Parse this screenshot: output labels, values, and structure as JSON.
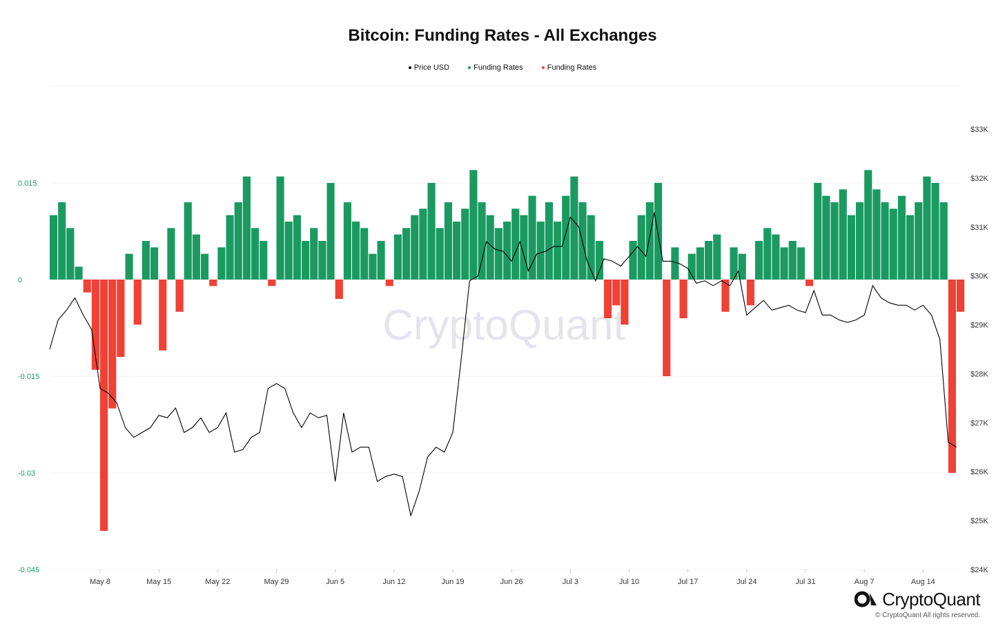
{
  "title": "Bitcoin: Funding Rates - All Exchanges",
  "watermark": "CryptoQuant",
  "logo_text": "CryptoQuant",
  "copyright": "© CryptoQuant All rights reserved.",
  "colors": {
    "price": "#000000",
    "positive": "#1a9a61",
    "negative": "#ef4135",
    "left_axis_text": "#1a9a61",
    "right_axis_text": "#333333",
    "watermark": "#e4e4ec"
  },
  "legend": [
    {
      "label": "Price USD",
      "color": "#000000"
    },
    {
      "label": "Funding Rates",
      "color": "#1a9a61"
    },
    {
      "label": "Funding Rates",
      "color": "#ef4135"
    }
  ],
  "chart_data": {
    "type": "bar+line",
    "x_start": "2023-05-02",
    "x_end": "2023-08-18",
    "x_ticks": [
      "May 8",
      "May 15",
      "May 22",
      "May 29",
      "Jun 5",
      "Jun 12",
      "Jun 19",
      "Jun 26",
      "Jul 3",
      "Jul 10",
      "Jul 17",
      "Jul 24",
      "Jul 31",
      "Aug 7",
      "Aug 14"
    ],
    "left_axis": {
      "ticks": [
        0.015,
        0,
        -0.015,
        -0.03,
        -0.045
      ],
      "tick_labels": [
        "0.015",
        "0",
        "-0.015",
        "-0.03",
        "-0.045"
      ],
      "range": [
        -0.045,
        0.0165
      ]
    },
    "right_axis": {
      "ticks": [
        24000,
        25000,
        26000,
        27000,
        28000,
        29000,
        30000,
        31000,
        32000,
        33000
      ],
      "tick_labels": [
        "$24K",
        "$25K",
        "$26K",
        "$27K",
        "$28K",
        "$29K",
        "$30K",
        "$31K",
        "$32K",
        "$33K"
      ],
      "range": [
        24000,
        33000
      ]
    },
    "price_usd": [
      [
        "2023-05-02",
        28500
      ],
      [
        "2023-05-03",
        29100
      ],
      [
        "2023-05-04",
        29300
      ],
      [
        "2023-05-05",
        29550
      ],
      [
        "2023-05-06",
        29200
      ],
      [
        "2023-05-07",
        28900
      ],
      [
        "2023-05-08",
        27700
      ],
      [
        "2023-05-09",
        27600
      ],
      [
        "2023-05-10",
        27400
      ],
      [
        "2023-05-11",
        26900
      ],
      [
        "2023-05-12",
        26700
      ],
      [
        "2023-05-13",
        26800
      ],
      [
        "2023-05-14",
        26900
      ],
      [
        "2023-05-15",
        27150
      ],
      [
        "2023-05-16",
        27100
      ],
      [
        "2023-05-17",
        27300
      ],
      [
        "2023-05-18",
        26800
      ],
      [
        "2023-05-19",
        26900
      ],
      [
        "2023-05-20",
        27100
      ],
      [
        "2023-05-21",
        26800
      ],
      [
        "2023-05-22",
        26900
      ],
      [
        "2023-05-23",
        27200
      ],
      [
        "2023-05-24",
        26400
      ],
      [
        "2023-05-25",
        26450
      ],
      [
        "2023-05-26",
        26700
      ],
      [
        "2023-05-27",
        26800
      ],
      [
        "2023-05-28",
        27700
      ],
      [
        "2023-05-29",
        27800
      ],
      [
        "2023-05-30",
        27700
      ],
      [
        "2023-05-31",
        27200
      ],
      [
        "2023-06-01",
        26900
      ],
      [
        "2023-06-02",
        27200
      ],
      [
        "2023-06-03",
        27100
      ],
      [
        "2023-06-04",
        27150
      ],
      [
        "2023-06-05",
        25800
      ],
      [
        "2023-06-06",
        27200
      ],
      [
        "2023-06-07",
        26400
      ],
      [
        "2023-06-08",
        26500
      ],
      [
        "2023-06-09",
        26500
      ],
      [
        "2023-06-10",
        25800
      ],
      [
        "2023-06-11",
        25900
      ],
      [
        "2023-06-12",
        25950
      ],
      [
        "2023-06-13",
        25900
      ],
      [
        "2023-06-14",
        25100
      ],
      [
        "2023-06-15",
        25600
      ],
      [
        "2023-06-16",
        26300
      ],
      [
        "2023-06-17",
        26500
      ],
      [
        "2023-06-18",
        26400
      ],
      [
        "2023-06-19",
        26800
      ],
      [
        "2023-06-20",
        28300
      ],
      [
        "2023-06-21",
        29900
      ],
      [
        "2023-06-22",
        30000
      ],
      [
        "2023-06-23",
        30700
      ],
      [
        "2023-06-24",
        30550
      ],
      [
        "2023-06-25",
        30500
      ],
      [
        "2023-06-26",
        30300
      ],
      [
        "2023-06-27",
        30700
      ],
      [
        "2023-06-28",
        30100
      ],
      [
        "2023-06-29",
        30450
      ],
      [
        "2023-06-30",
        30500
      ],
      [
        "2023-07-01",
        30600
      ],
      [
        "2023-07-02",
        30600
      ],
      [
        "2023-07-03",
        31200
      ],
      [
        "2023-07-04",
        31000
      ],
      [
        "2023-07-05",
        30300
      ],
      [
        "2023-07-06",
        29900
      ],
      [
        "2023-07-07",
        30350
      ],
      [
        "2023-07-08",
        30300
      ],
      [
        "2023-07-09",
        30200
      ],
      [
        "2023-07-10",
        30400
      ],
      [
        "2023-07-11",
        30600
      ],
      [
        "2023-07-12",
        30400
      ],
      [
        "2023-07-13",
        31300
      ],
      [
        "2023-07-14",
        30300
      ],
      [
        "2023-07-15",
        30300
      ],
      [
        "2023-07-16",
        30250
      ],
      [
        "2023-07-17",
        30150
      ],
      [
        "2023-07-18",
        29850
      ],
      [
        "2023-07-19",
        29900
      ],
      [
        "2023-07-20",
        29800
      ],
      [
        "2023-07-21",
        29900
      ],
      [
        "2023-07-22",
        29800
      ],
      [
        "2023-07-23",
        30100
      ],
      [
        "2023-07-24",
        29200
      ],
      [
        "2023-07-25",
        29350
      ],
      [
        "2023-07-26",
        29500
      ],
      [
        "2023-07-27",
        29300
      ],
      [
        "2023-07-28",
        29350
      ],
      [
        "2023-07-29",
        29400
      ],
      [
        "2023-07-30",
        29300
      ],
      [
        "2023-07-31",
        29250
      ],
      [
        "2023-08-01",
        29700
      ],
      [
        "2023-08-02",
        29200
      ],
      [
        "2023-08-03",
        29200
      ],
      [
        "2023-08-04",
        29100
      ],
      [
        "2023-08-05",
        29050
      ],
      [
        "2023-08-06",
        29100
      ],
      [
        "2023-08-07",
        29200
      ],
      [
        "2023-08-08",
        29800
      ],
      [
        "2023-08-09",
        29550
      ],
      [
        "2023-08-10",
        29450
      ],
      [
        "2023-08-11",
        29400
      ],
      [
        "2023-08-12",
        29400
      ],
      [
        "2023-08-13",
        29300
      ],
      [
        "2023-08-14",
        29400
      ],
      [
        "2023-08-15",
        29200
      ],
      [
        "2023-08-16",
        28700
      ],
      [
        "2023-08-17",
        26600
      ],
      [
        "2023-08-18",
        26500
      ]
    ],
    "funding_rates": [
      [
        "2023-05-02",
        0.01
      ],
      [
        "2023-05-03",
        0.012
      ],
      [
        "2023-05-04",
        0.008
      ],
      [
        "2023-05-05",
        0.002
      ],
      [
        "2023-05-06",
        -0.002
      ],
      [
        "2023-05-07",
        -0.014
      ],
      [
        "2023-05-08",
        -0.039
      ],
      [
        "2023-05-09",
        -0.02
      ],
      [
        "2023-05-10",
        -0.012
      ],
      [
        "2023-05-11",
        0.004
      ],
      [
        "2023-05-12",
        -0.007
      ],
      [
        "2023-05-13",
        0.006
      ],
      [
        "2023-05-14",
        0.005
      ],
      [
        "2023-05-15",
        -0.011
      ],
      [
        "2023-05-16",
        0.008
      ],
      [
        "2023-05-17",
        -0.005
      ],
      [
        "2023-05-18",
        0.012
      ],
      [
        "2023-05-19",
        0.007
      ],
      [
        "2023-05-20",
        0.004
      ],
      [
        "2023-05-21",
        -0.001
      ],
      [
        "2023-05-22",
        0.005
      ],
      [
        "2023-05-23",
        0.01
      ],
      [
        "2023-05-24",
        0.012
      ],
      [
        "2023-05-25",
        0.016
      ],
      [
        "2023-05-26",
        0.008
      ],
      [
        "2023-05-27",
        0.006
      ],
      [
        "2023-05-28",
        -0.001
      ],
      [
        "2023-05-29",
        0.016
      ],
      [
        "2023-05-30",
        0.009
      ],
      [
        "2023-05-31",
        0.01
      ],
      [
        "2023-06-01",
        0.006
      ],
      [
        "2023-06-02",
        0.008
      ],
      [
        "2023-06-03",
        0.006
      ],
      [
        "2023-06-04",
        0.015
      ],
      [
        "2023-06-05",
        -0.003
      ],
      [
        "2023-06-06",
        0.012
      ],
      [
        "2023-06-07",
        0.009
      ],
      [
        "2023-06-08",
        0.008
      ],
      [
        "2023-06-09",
        0.004
      ],
      [
        "2023-06-10",
        0.006
      ],
      [
        "2023-06-11",
        -0.001
      ],
      [
        "2023-06-12",
        0.007
      ],
      [
        "2023-06-13",
        0.008
      ],
      [
        "2023-06-14",
        0.01
      ],
      [
        "2023-06-15",
        0.011
      ],
      [
        "2023-06-16",
        0.015
      ],
      [
        "2023-06-17",
        0.008
      ],
      [
        "2023-06-18",
        0.012
      ],
      [
        "2023-06-19",
        0.009
      ],
      [
        "2023-06-20",
        0.011
      ],
      [
        "2023-06-21",
        0.017
      ],
      [
        "2023-06-22",
        0.012
      ],
      [
        "2023-06-23",
        0.01
      ],
      [
        "2023-06-24",
        0.008
      ],
      [
        "2023-06-25",
        0.009
      ],
      [
        "2023-06-26",
        0.011
      ],
      [
        "2023-06-27",
        0.01
      ],
      [
        "2023-06-28",
        0.013
      ],
      [
        "2023-06-29",
        0.009
      ],
      [
        "2023-06-30",
        0.012
      ],
      [
        "2023-07-01",
        0.009
      ],
      [
        "2023-07-02",
        0.013
      ],
      [
        "2023-07-03",
        0.016
      ],
      [
        "2023-07-04",
        0.012
      ],
      [
        "2023-07-05",
        0.01
      ],
      [
        "2023-07-06",
        0.006
      ],
      [
        "2023-07-07",
        -0.006
      ],
      [
        "2023-07-08",
        -0.004
      ],
      [
        "2023-07-09",
        -0.007
      ],
      [
        "2023-07-10",
        0.006
      ],
      [
        "2023-07-11",
        0.01
      ],
      [
        "2023-07-12",
        0.012
      ],
      [
        "2023-07-13",
        0.015
      ],
      [
        "2023-07-14",
        -0.015
      ],
      [
        "2023-07-15",
        0.005
      ],
      [
        "2023-07-16",
        -0.006
      ],
      [
        "2023-07-17",
        0.004
      ],
      [
        "2023-07-18",
        0.005
      ],
      [
        "2023-07-19",
        0.006
      ],
      [
        "2023-07-20",
        0.007
      ],
      [
        "2023-07-21",
        -0.005
      ],
      [
        "2023-07-22",
        0.005
      ],
      [
        "2023-07-23",
        0.004
      ],
      [
        "2023-07-24",
        -0.004
      ],
      [
        "2023-07-25",
        0.006
      ],
      [
        "2023-07-26",
        0.008
      ],
      [
        "2023-07-27",
        0.007
      ],
      [
        "2023-07-28",
        0.005
      ],
      [
        "2023-07-29",
        0.006
      ],
      [
        "2023-07-30",
        0.005
      ],
      [
        "2023-07-31",
        -0.001
      ],
      [
        "2023-08-01",
        0.015
      ],
      [
        "2023-08-02",
        0.013
      ],
      [
        "2023-08-03",
        0.012
      ],
      [
        "2023-08-04",
        0.014
      ],
      [
        "2023-08-05",
        0.01
      ],
      [
        "2023-08-06",
        0.012
      ],
      [
        "2023-08-07",
        0.017
      ],
      [
        "2023-08-08",
        0.014
      ],
      [
        "2023-08-09",
        0.012
      ],
      [
        "2023-08-10",
        0.011
      ],
      [
        "2023-08-11",
        0.013
      ],
      [
        "2023-08-12",
        0.01
      ],
      [
        "2023-08-13",
        0.012
      ],
      [
        "2023-08-14",
        0.016
      ],
      [
        "2023-08-15",
        0.015
      ],
      [
        "2023-08-16",
        0.012
      ],
      [
        "2023-08-17",
        -0.03
      ],
      [
        "2023-08-18",
        -0.005
      ]
    ]
  }
}
